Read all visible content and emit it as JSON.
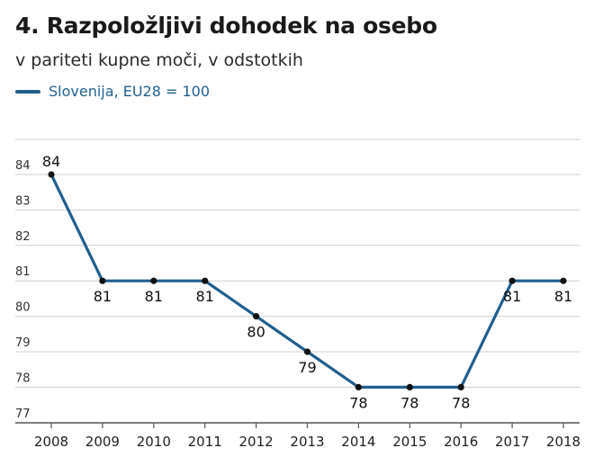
{
  "chart_data": {
    "type": "line",
    "title": "4. Razpoložljivi dohodek na osebo",
    "subtitle": "v pariteti kupne moči, v odstotkih",
    "x": [
      "2008",
      "2009",
      "2010",
      "2011",
      "2012",
      "2013",
      "2014",
      "2015",
      "2016",
      "2017",
      "2018"
    ],
    "series": [
      {
        "name": "Slovenija, EU28 = 100",
        "color": "#1f5f8f",
        "values": [
          84,
          81,
          81,
          81,
          80,
          79,
          78,
          78,
          78,
          81,
          81
        ]
      }
    ],
    "data_labels": [
      "84",
      "81",
      "81",
      "81",
      "80",
      "79",
      "78",
      "78",
      "78",
      "81",
      "81"
    ],
    "yticks": [
      "84",
      "83",
      "82",
      "81",
      "80",
      "79",
      "78",
      "77"
    ],
    "ylim": [
      77,
      85
    ],
    "grid": true,
    "legend_position": "top-left",
    "colors": {
      "line": "#1f5f8f",
      "marker": "#111111",
      "grid": "#cfcfcf",
      "axis": "#555555"
    }
  }
}
